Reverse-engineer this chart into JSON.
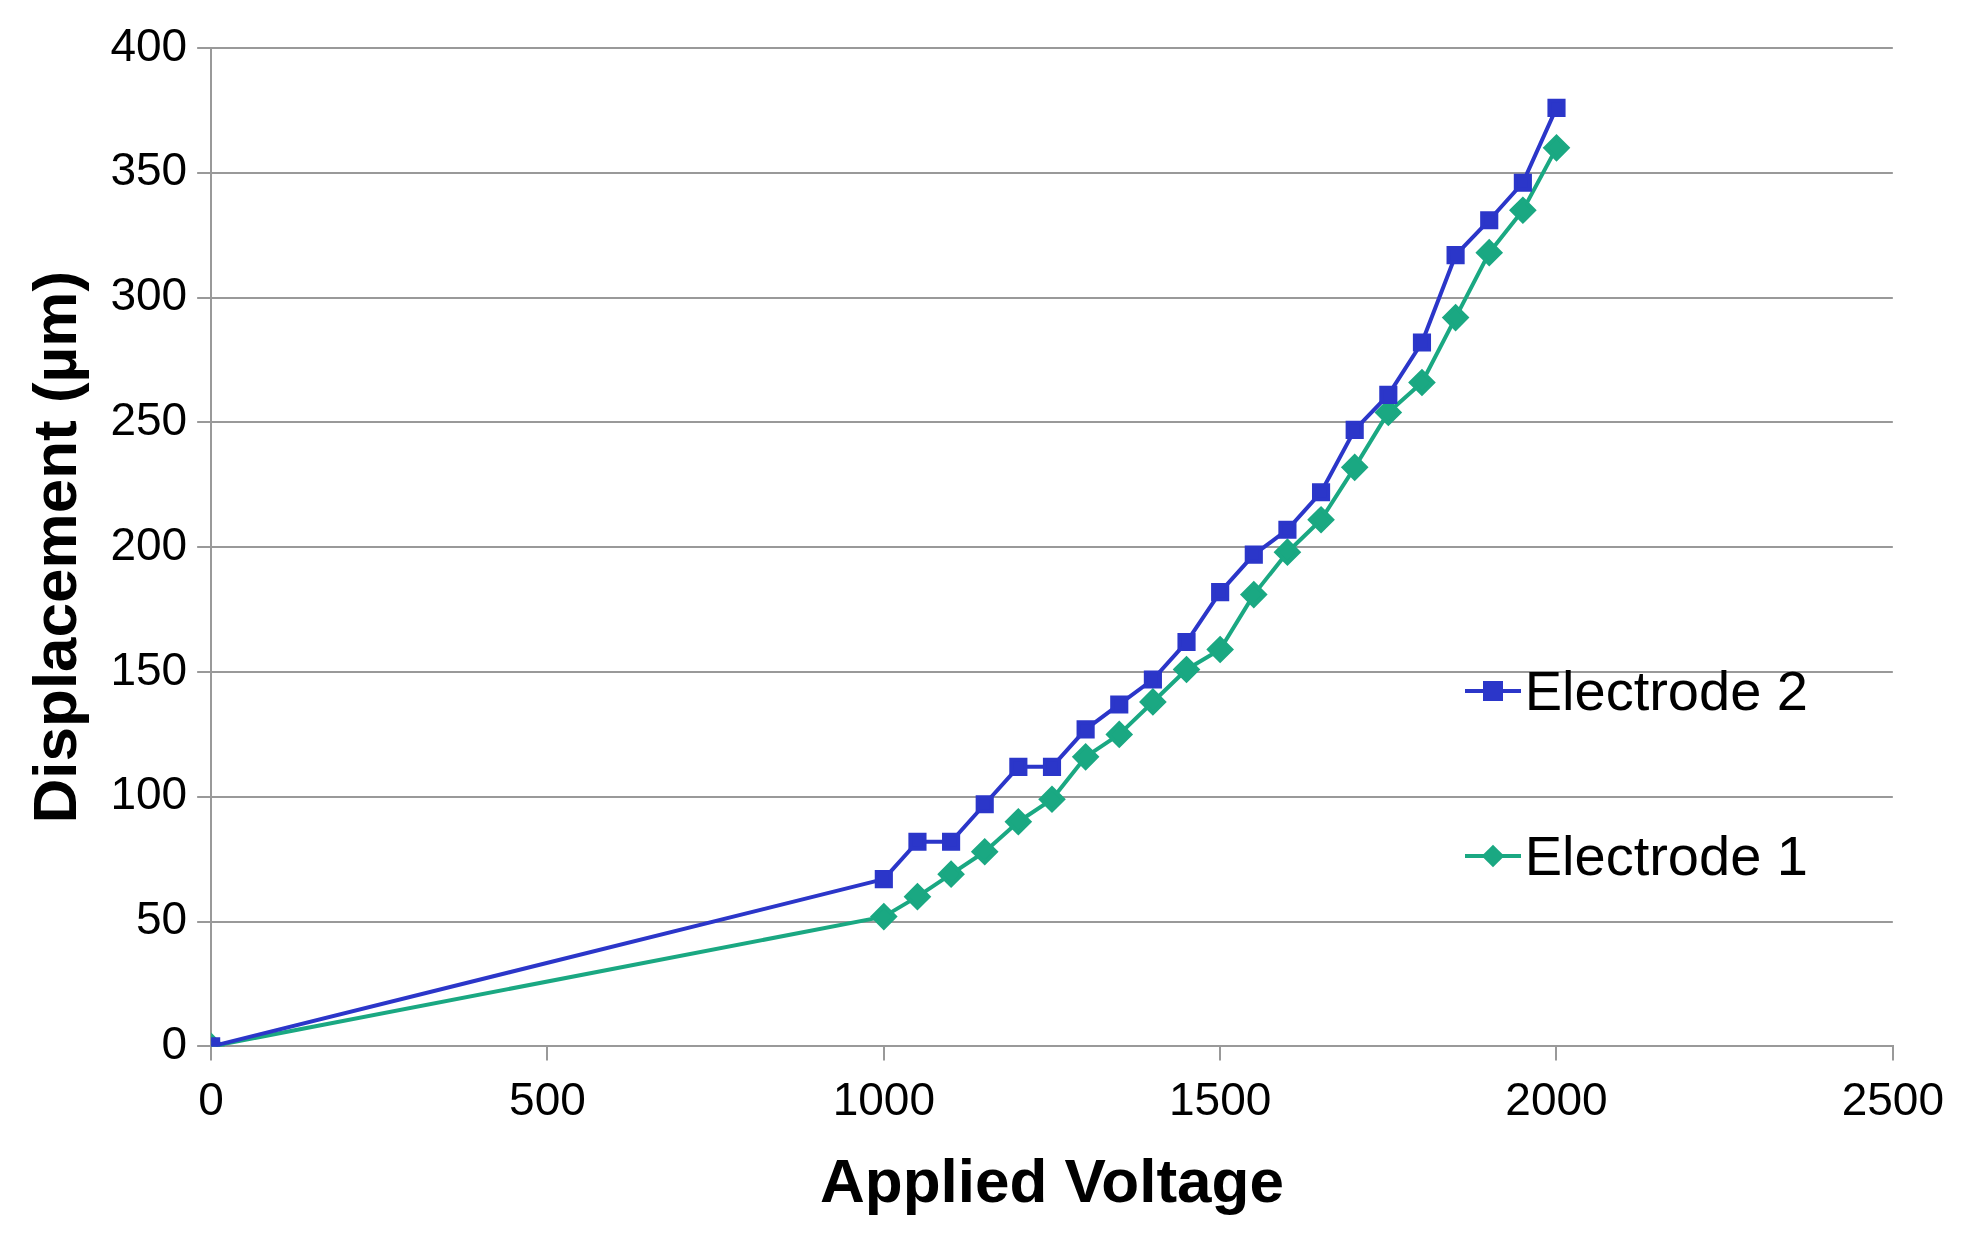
{
  "chart_data": {
    "type": "line",
    "xlabel": "Applied Voltage",
    "ylabel": "Displacement (µm)",
    "xlim": [
      0,
      2500
    ],
    "xticks": [
      0,
      500,
      1000,
      1500,
      2000,
      2500
    ],
    "ylim": [
      0,
      400
    ],
    "yticks": [
      0,
      50,
      100,
      150,
      200,
      250,
      300,
      350,
      400
    ],
    "grid": "y",
    "legend": "right",
    "line_style": "solid",
    "series": [
      {
        "name": "Electrode 2",
        "color": "#2b36c9",
        "marker": "square",
        "x": [
          0,
          1000,
          1050,
          1100,
          1150,
          1200,
          1250,
          1300,
          1350,
          1400,
          1450,
          1500,
          1550,
          1600,
          1650,
          1700,
          1750,
          1800,
          1850,
          1900,
          1950,
          2000
        ],
        "values": [
          0,
          67,
          82,
          82,
          97,
          112,
          112,
          127,
          137,
          147,
          162,
          182,
          197,
          207,
          222,
          247,
          261,
          282,
          317,
          331,
          346,
          376
        ]
      },
      {
        "name": "Electrode 1",
        "color": "#1aa882",
        "marker": "diamond",
        "x": [
          0,
          1000,
          1050,
          1100,
          1150,
          1200,
          1250,
          1300,
          1350,
          1400,
          1450,
          1500,
          1550,
          1600,
          1650,
          1700,
          1750,
          1800,
          1850,
          1900,
          1950,
          2000
        ],
        "values": [
          0,
          52,
          60,
          69,
          78,
          90,
          99,
          116,
          125,
          138,
          151,
          159,
          181,
          198,
          211,
          232,
          254,
          266,
          292,
          318,
          335,
          360
        ]
      }
    ]
  }
}
